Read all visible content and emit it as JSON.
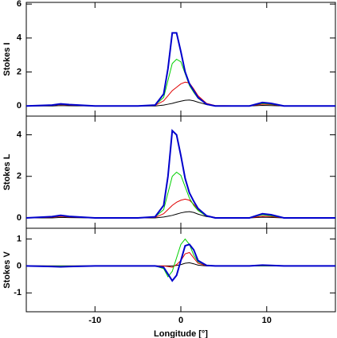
{
  "chart_data": [
    {
      "type": "line",
      "y_label": "Stokes I",
      "x": [
        -18,
        -15,
        -14,
        -13,
        -10,
        -5,
        -3,
        -2,
        -1.5,
        -1,
        -0.5,
        0,
        0.5,
        1,
        1.5,
        2,
        3,
        4,
        8,
        9.5,
        10.5,
        12,
        18
      ],
      "xlim": [
        -18,
        18
      ],
      "ylim": [
        -0.6,
        6.1
      ],
      "xticks": [
        -10,
        0,
        10
      ],
      "yticks": [
        0,
        2,
        4,
        6
      ],
      "series": [
        {
          "color": "#000000",
          "values": [
            0,
            0,
            0.02,
            0.01,
            0,
            0,
            0,
            0.05,
            0.1,
            0.15,
            0.22,
            0.28,
            0.33,
            0.35,
            0.3,
            0.22,
            0.08,
            0.01,
            0,
            0.03,
            0.02,
            0,
            0
          ]
        },
        {
          "color": "#e00000",
          "values": [
            0,
            0.04,
            0.08,
            0.05,
            0,
            0,
            0.03,
            0.3,
            0.6,
            0.9,
            1.1,
            1.3,
            1.4,
            1.35,
            1.0,
            0.6,
            0.15,
            0.02,
            0,
            0.1,
            0.08,
            0,
            0
          ]
        },
        {
          "color": "#00d000",
          "values": [
            0,
            0.05,
            0.1,
            0.07,
            0,
            0,
            0.05,
            0.5,
            1.5,
            2.5,
            2.75,
            2.6,
            1.9,
            1.2,
            0.8,
            0.45,
            0.1,
            0,
            0,
            0.15,
            0.1,
            0,
            0
          ]
        },
        {
          "color": "#0000cc",
          "values": [
            0,
            0.05,
            0.12,
            0.08,
            0,
            0,
            0.05,
            0.7,
            2.2,
            4.3,
            4.3,
            3.2,
            2.0,
            1.3,
            0.9,
            0.5,
            0.1,
            0,
            0,
            0.2,
            0.15,
            0,
            0
          ]
        }
      ]
    },
    {
      "type": "line",
      "y_label": "Stokes L",
      "x": [
        -18,
        -15,
        -14,
        -13,
        -10,
        -5,
        -3,
        -2,
        -1.5,
        -1,
        -0.5,
        0,
        0.5,
        1,
        1.5,
        2,
        3,
        4,
        8,
        9.5,
        10.5,
        12,
        18
      ],
      "xlim": [
        -18,
        18
      ],
      "ylim": [
        -0.5,
        4.9
      ],
      "xticks": [
        -10,
        0,
        10
      ],
      "yticks": [
        0,
        2,
        4
      ],
      "series": [
        {
          "color": "#000000",
          "values": [
            0,
            0,
            0.02,
            0.01,
            0,
            0,
            0,
            0.04,
            0.08,
            0.12,
            0.18,
            0.24,
            0.28,
            0.3,
            0.26,
            0.18,
            0.06,
            0.01,
            0,
            0.03,
            0.02,
            0,
            0
          ]
        },
        {
          "color": "#e00000",
          "values": [
            0,
            0.03,
            0.07,
            0.04,
            0,
            0,
            0.02,
            0.2,
            0.4,
            0.6,
            0.75,
            0.85,
            0.9,
            0.85,
            0.65,
            0.4,
            0.1,
            0.02,
            0,
            0.08,
            0.06,
            0,
            0
          ]
        },
        {
          "color": "#00d000",
          "values": [
            0,
            0.05,
            0.1,
            0.06,
            0,
            0,
            0.04,
            0.4,
            1.2,
            2.0,
            2.2,
            2.05,
            1.5,
            0.95,
            0.6,
            0.35,
            0.08,
            0,
            0,
            0.15,
            0.1,
            0,
            0
          ]
        },
        {
          "color": "#0000cc",
          "values": [
            0,
            0.06,
            0.12,
            0.07,
            0,
            0,
            0.05,
            0.6,
            2.0,
            4.2,
            4.0,
            3.0,
            1.9,
            1.2,
            0.8,
            0.45,
            0.1,
            0,
            0,
            0.2,
            0.15,
            0,
            0
          ]
        }
      ]
    },
    {
      "type": "line",
      "y_label": "Stokes V",
      "x_label": "Longitude [°]",
      "x": [
        -18,
        -15,
        -14,
        -13,
        -10,
        -5,
        -3,
        -2,
        -1.5,
        -1,
        -0.5,
        0,
        0.5,
        1,
        1.5,
        2,
        3,
        4,
        8,
        9.5,
        10.5,
        12,
        18
      ],
      "xlim": [
        -18,
        18
      ],
      "ylim": [
        -1.7,
        1.4
      ],
      "xticks": [
        -10,
        0,
        10
      ],
      "yticks": [
        -1,
        0,
        1
      ],
      "series": [
        {
          "color": "#000000",
          "values": [
            0,
            0,
            0,
            0,
            0,
            0,
            0,
            0,
            0,
            0,
            0.02,
            0.05,
            0.1,
            0.12,
            0.08,
            0.03,
            0,
            0,
            0,
            0,
            0,
            0,
            0
          ]
        },
        {
          "color": "#e00000",
          "values": [
            0,
            0,
            0,
            0,
            0,
            0,
            0,
            0,
            -0.02,
            -0.05,
            0.05,
            0.2,
            0.45,
            0.5,
            0.3,
            0.1,
            0.01,
            0,
            0,
            0,
            0,
            0,
            0
          ]
        },
        {
          "color": "#00d000",
          "values": [
            0,
            0,
            0,
            0,
            0,
            0,
            0,
            -0.1,
            -0.4,
            -0.2,
            0.3,
            0.8,
            1.0,
            0.8,
            0.4,
            0.15,
            0.02,
            0,
            0,
            0,
            0,
            0,
            0
          ]
        },
        {
          "color": "#0000cc",
          "values": [
            0,
            -0.02,
            -0.03,
            -0.02,
            0,
            0,
            0,
            -0.05,
            -0.3,
            -0.55,
            -0.35,
            0.2,
            0.75,
            0.8,
            0.6,
            0.2,
            0.02,
            0,
            0,
            0.03,
            0.02,
            0,
            0
          ]
        }
      ]
    }
  ]
}
